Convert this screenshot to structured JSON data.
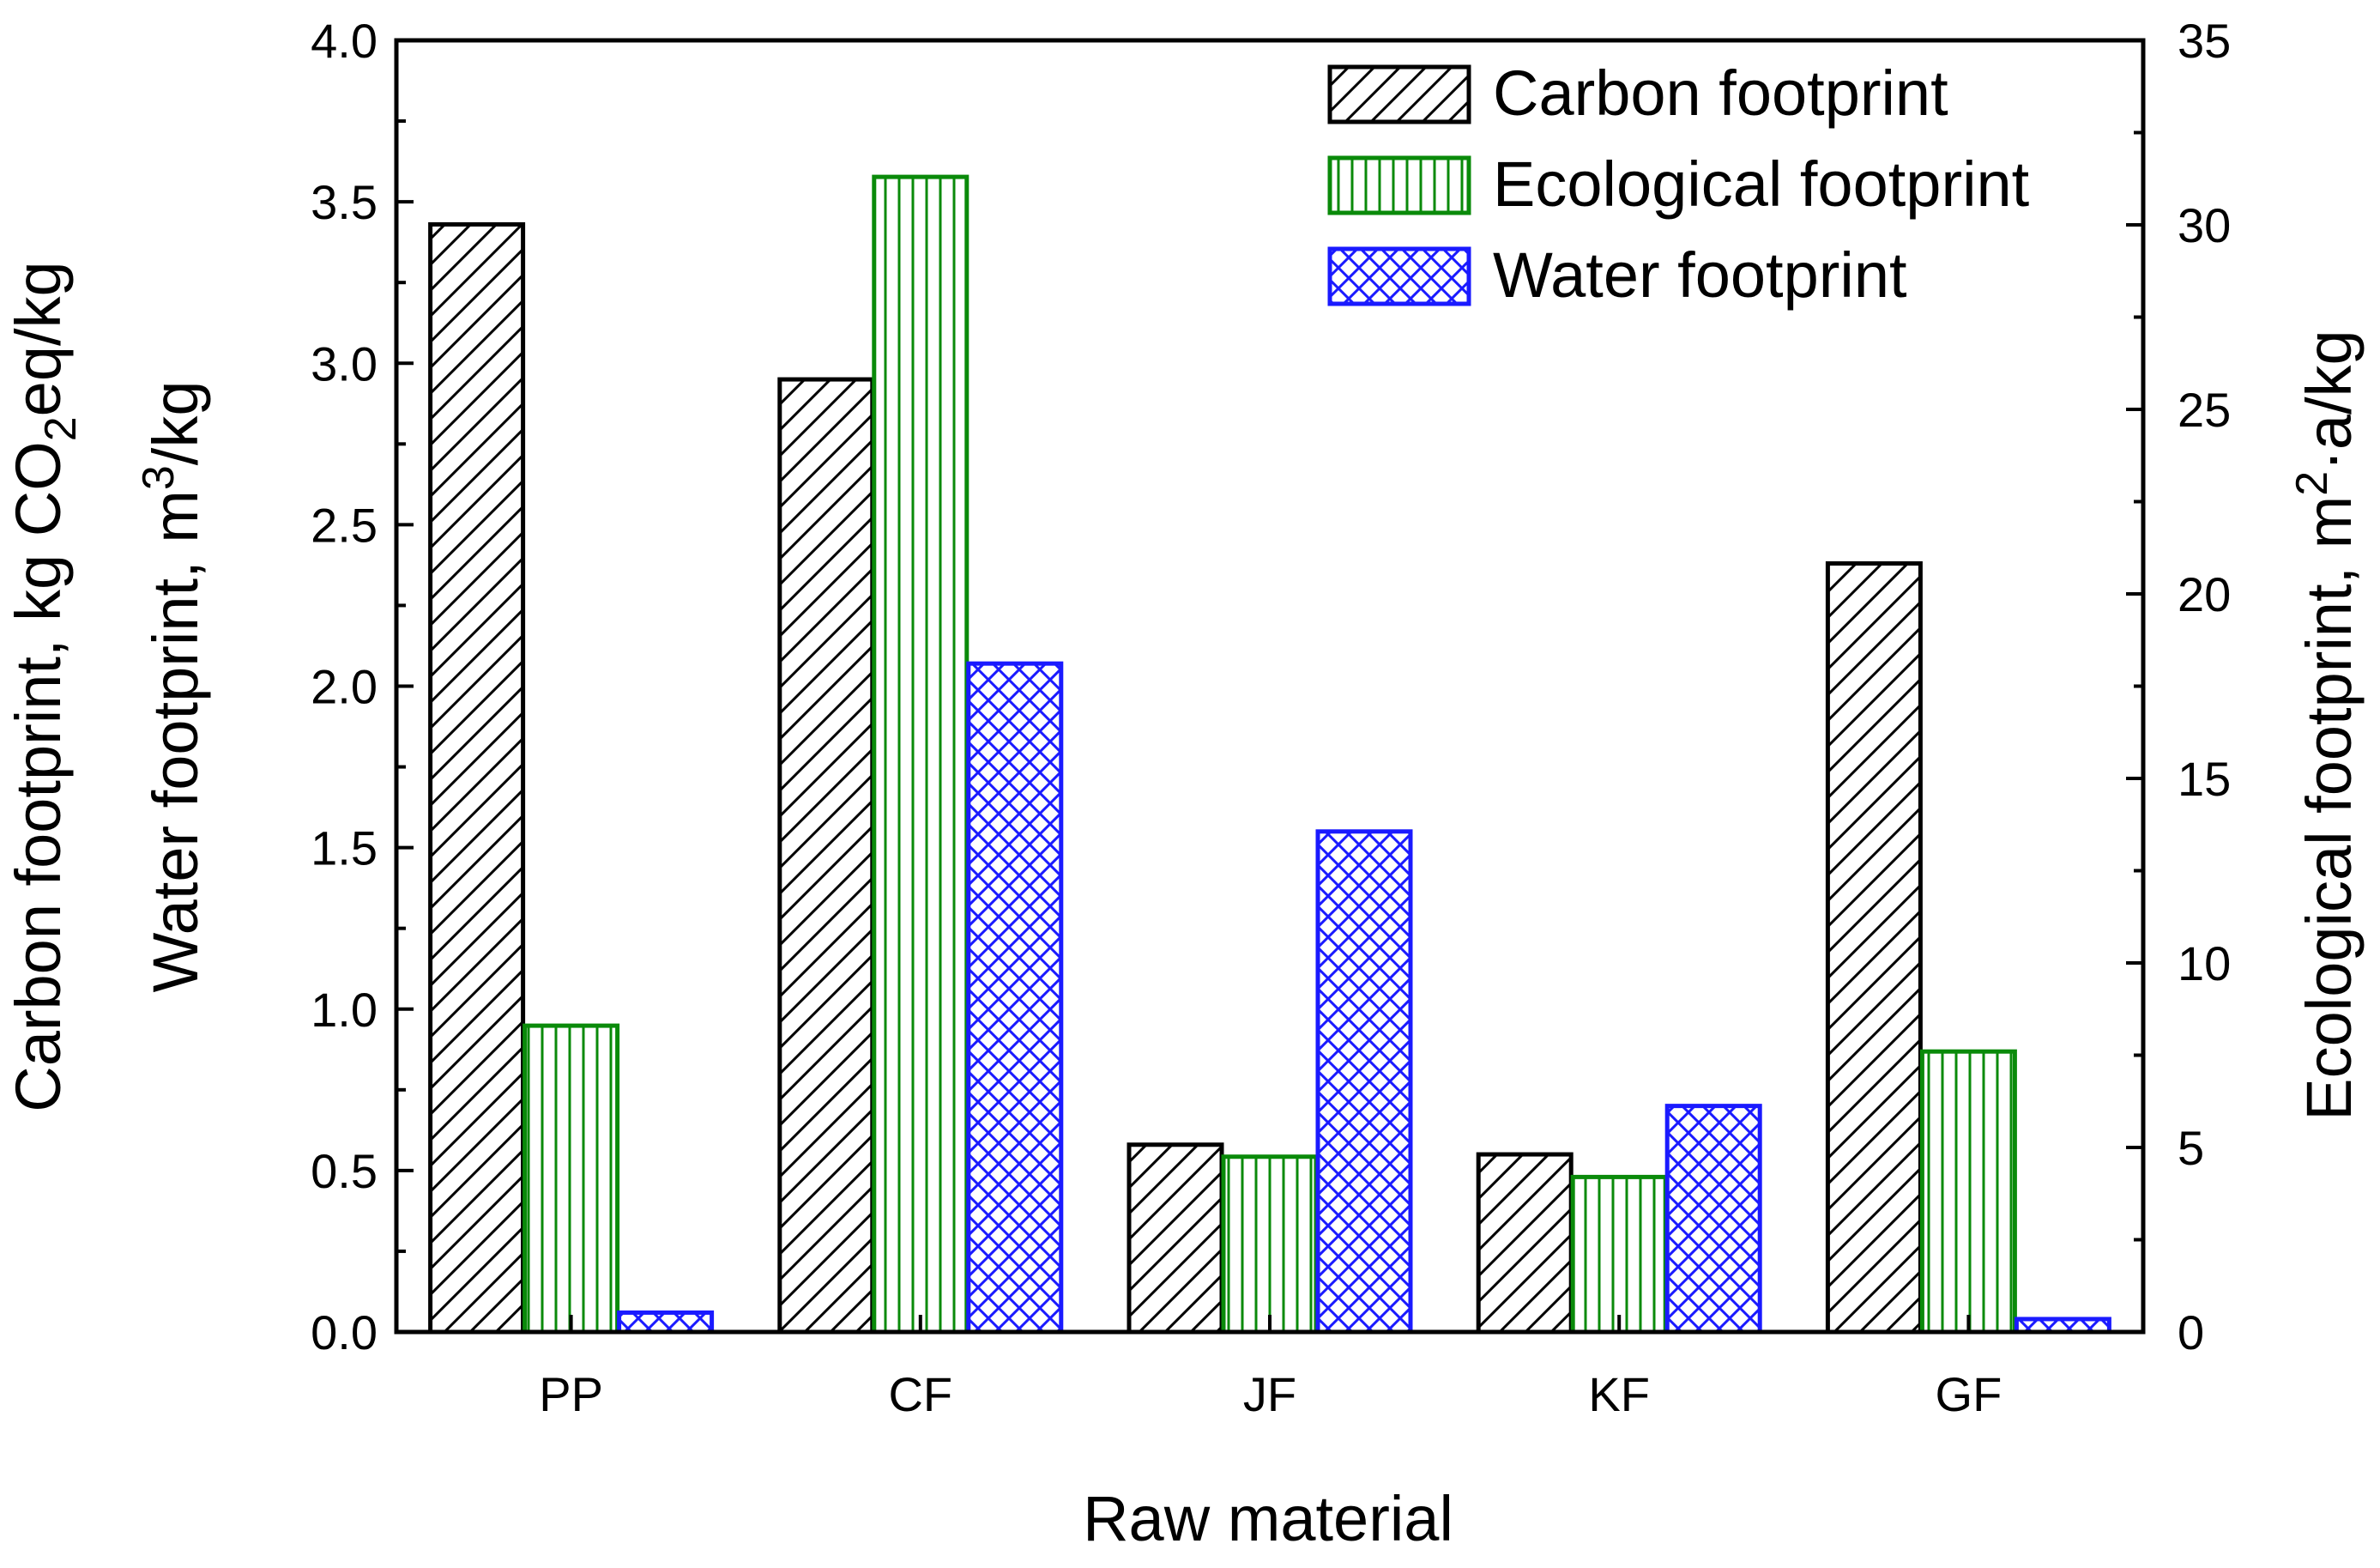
{
  "chart_data": {
    "type": "bar",
    "categories": [
      "PP",
      "CF",
      "JF",
      "KF",
      "GF"
    ],
    "series": [
      {
        "name": "Carbon footprint",
        "axis": "left",
        "pattern": "diagonal",
        "color": "#000000",
        "values": [
          3.43,
          2.95,
          0.58,
          0.55,
          2.38
        ]
      },
      {
        "name": "Ecological footprint",
        "axis": "right",
        "pattern": "vertical",
        "color": "#0a8a0a",
        "values": [
          8.3,
          31.3,
          4.75,
          4.2,
          7.6
        ]
      },
      {
        "name": "Water footprint",
        "axis": "left",
        "pattern": "crosshatch",
        "color": "#1a1aff",
        "values": [
          0.06,
          2.07,
          1.55,
          0.7,
          0.04
        ]
      }
    ],
    "left_axis": {
      "label_prefix": "Carbon footprint, kg CO",
      "label_sub": "2",
      "label_suffix": "eq/kg",
      "label2_prefix": "Water footprint, m",
      "label2_sup": "3",
      "label2_suffix": "/kg",
      "ylim": [
        0,
        4.0
      ],
      "ticks": [
        "0.0",
        "0.5",
        "1.0",
        "1.5",
        "2.0",
        "2.5",
        "3.0",
        "3.5",
        "4.0"
      ]
    },
    "right_axis": {
      "label_prefix": "Ecological footprint, m",
      "label_sup": "2",
      "label_suffix": "·a/kg",
      "ylim": [
        0,
        35
      ],
      "ticks": [
        "0",
        "5",
        "10",
        "15",
        "20",
        "25",
        "30",
        "35"
      ]
    },
    "xlabel": "Raw material",
    "legend_position": "top-right"
  }
}
